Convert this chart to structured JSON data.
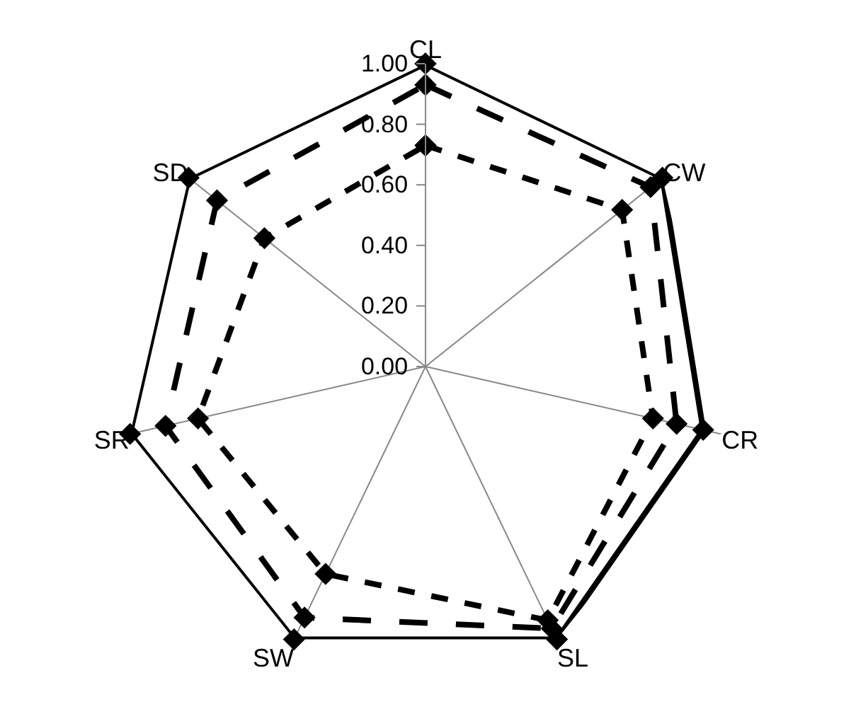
{
  "chart_data": {
    "type": "radar",
    "categories": [
      "CL",
      "CW",
      "CR",
      "SL",
      "SW",
      "SR",
      "SD"
    ],
    "series": [
      {
        "color": "#000000",
        "line_style": "solid",
        "values": [
          1.0,
          1.0,
          0.94,
          1.0,
          1.0,
          1.0,
          1.0
        ]
      },
      {
        "color": "#000000",
        "line_style": "dashed",
        "values": [
          0.93,
          0.95,
          0.85,
          0.96,
          0.92,
          0.88,
          0.88
        ]
      },
      {
        "color": "#000000",
        "line_style": "dotted",
        "values": [
          0.73,
          0.83,
          0.77,
          0.93,
          0.76,
          0.77,
          0.68
        ]
      }
    ],
    "ylim": [
      0,
      1
    ],
    "yticks": [
      {
        "value": 0,
        "label": "0.00"
      },
      {
        "value": 0.2,
        "label": "0.20"
      },
      {
        "value": 0.4,
        "label": "0.40"
      },
      {
        "value": 0.6,
        "label": "0.60"
      },
      {
        "value": 0.8,
        "label": "0.80"
      },
      {
        "value": 1,
        "label": "1.00"
      }
    ],
    "grid": true,
    "marker": "diamond"
  }
}
